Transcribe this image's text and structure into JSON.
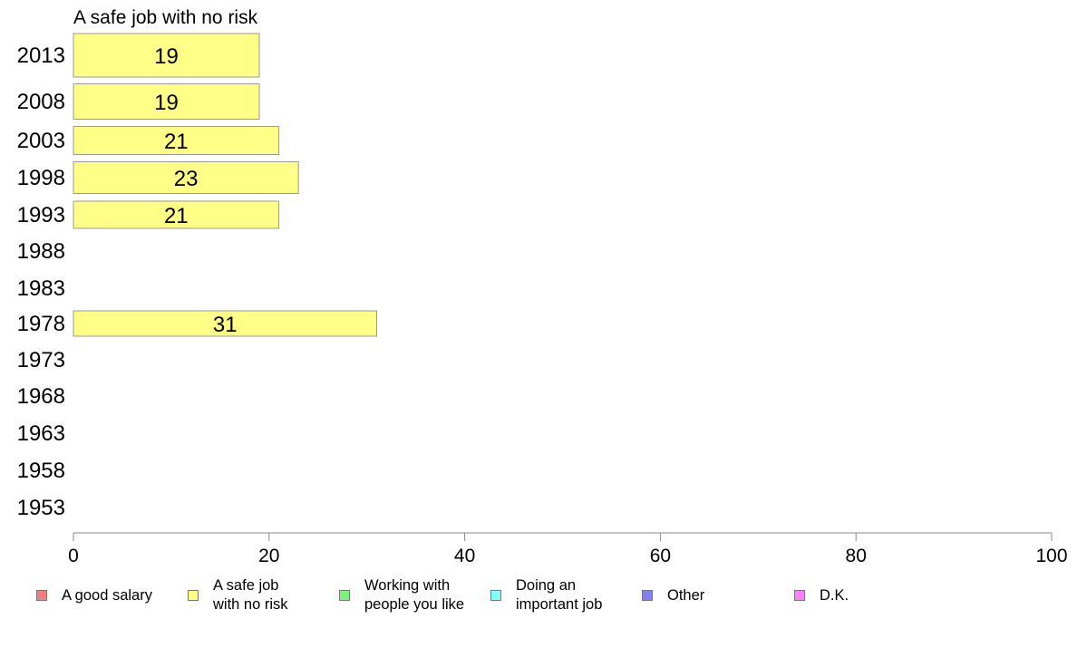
{
  "chart_data": {
    "type": "bar",
    "orientation": "horizontal",
    "title": "A safe job with no risk",
    "categories": [
      "2013",
      "2008",
      "2003",
      "1998",
      "1993",
      "1988",
      "1983",
      "1978",
      "1973",
      "1968",
      "1963",
      "1958",
      "1953"
    ],
    "series": [
      {
        "name": "A safe job with no risk",
        "values": [
          19,
          19,
          21,
          23,
          21,
          null,
          null,
          31,
          null,
          null,
          null,
          null,
          null
        ],
        "labels": [
          "19",
          "19",
          "21",
          "23",
          "21",
          "",
          "",
          "31",
          "",
          "",
          "",
          "",
          ""
        ]
      }
    ],
    "xlim": [
      0,
      100
    ],
    "xticks": [
      "0",
      "20",
      "40",
      "60",
      "80",
      "100"
    ],
    "grid": false,
    "bar_color": "#ffff88",
    "bar_border": "#999999",
    "legend_position": "bottom",
    "legend": [
      {
        "label": "A good salary",
        "color": "#f08080"
      },
      {
        "label": "A safe job\nwith no risk",
        "color": "#ffff80"
      },
      {
        "label": "Working with\npeople you like",
        "color": "#80f080"
      },
      {
        "label": "Doing an\nimportant job",
        "color": "#80ffff"
      },
      {
        "label": "Other",
        "color": "#8080f0"
      },
      {
        "label": "D.K.",
        "color": "#ff80ff"
      }
    ]
  }
}
